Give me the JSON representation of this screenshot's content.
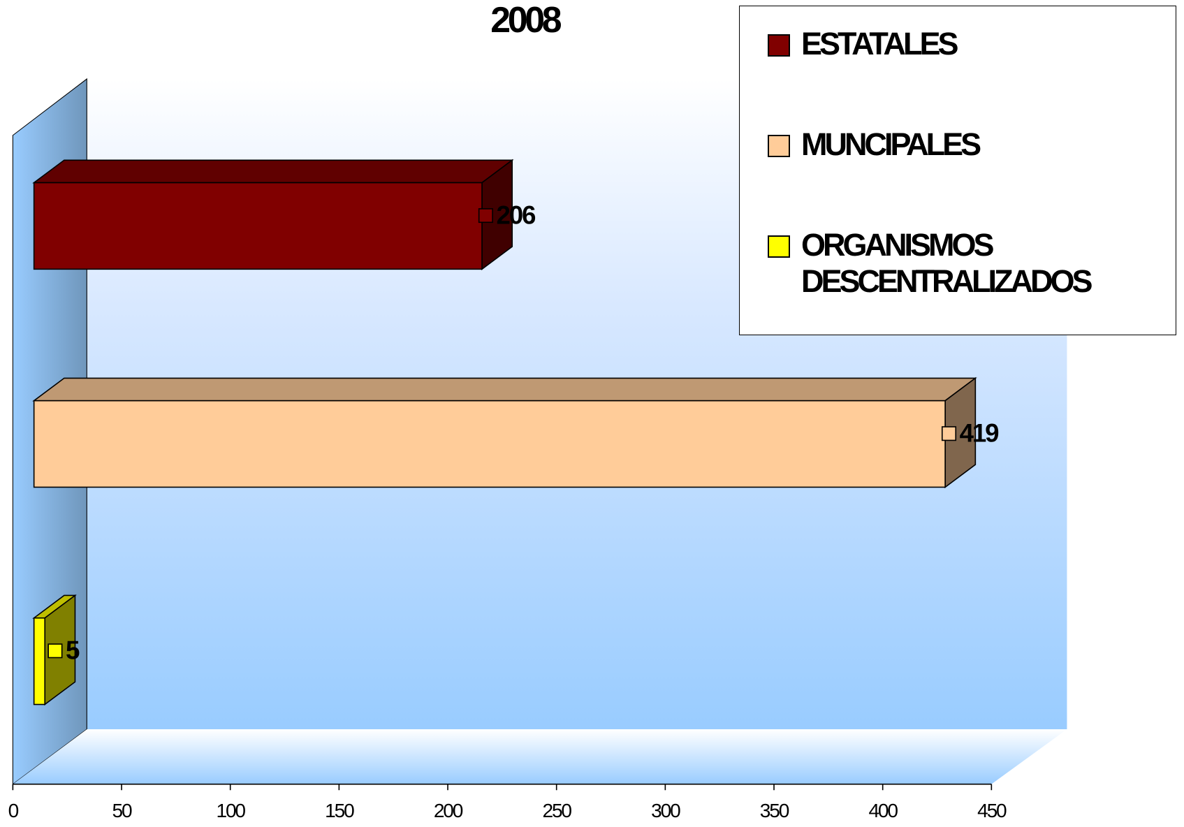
{
  "chart_data": {
    "type": "bar3d",
    "title": "2008",
    "series": [
      {
        "name": "ESTATALES",
        "color": "#800000",
        "values": [
          206
        ]
      },
      {
        "name": "MUNCIPALES",
        "color": "#FFCC99",
        "values": [
          419
        ]
      },
      {
        "name": "ORGANISMOS DESCENTRALIZADOS",
        "color": "#FFFF00",
        "values": [
          5
        ]
      }
    ],
    "xlim": [
      0,
      450
    ],
    "xticks": [
      0,
      50,
      100,
      150,
      200,
      250,
      300,
      350,
      400,
      450
    ],
    "legend": "top-right"
  }
}
